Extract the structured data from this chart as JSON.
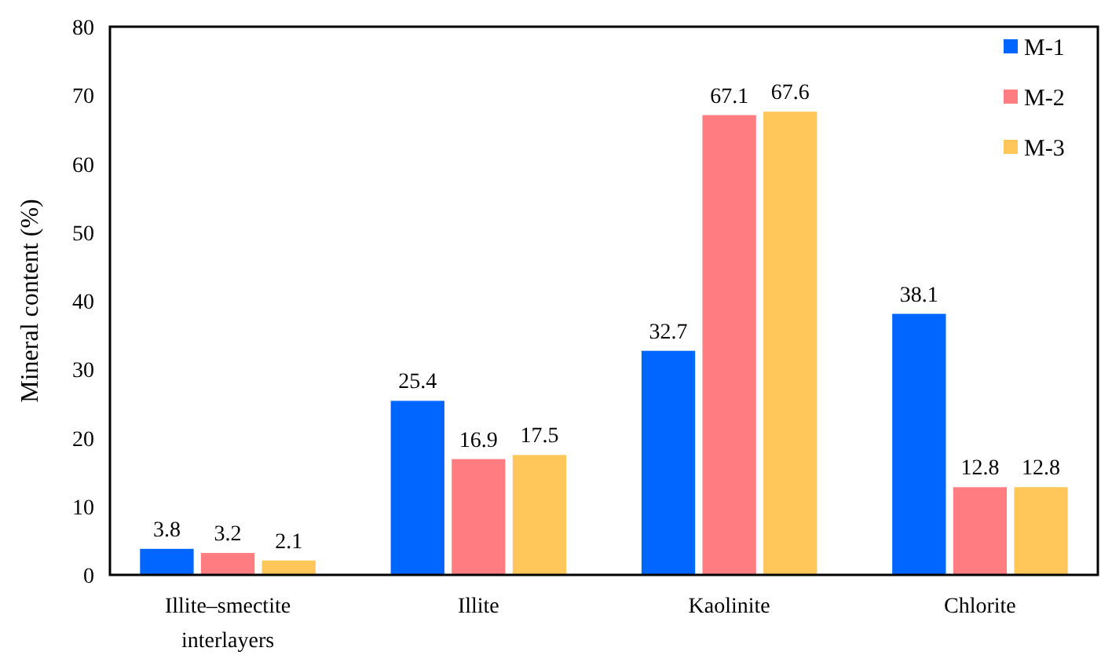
{
  "chart_data": {
    "type": "bar",
    "ylabel": "Mineral content (%)",
    "categories": [
      "Illite–smectite interlayers",
      "Illite",
      "Kaolinite",
      "Chlorite"
    ],
    "series": [
      {
        "name": "M-1",
        "color": "#0066ff",
        "values": [
          3.8,
          25.4,
          32.7,
          38.1
        ]
      },
      {
        "name": "M-2",
        "color": "#ff7c80",
        "values": [
          3.2,
          16.9,
          67.1,
          12.8
        ]
      },
      {
        "name": "M-3",
        "color": "#ffc65a",
        "values": [
          2.1,
          17.5,
          67.6,
          12.8
        ]
      }
    ],
    "ylim": [
      0,
      80
    ],
    "yticks": [
      0,
      10,
      20,
      30,
      40,
      50,
      60,
      70,
      80
    ],
    "data_labels": true,
    "legend": "top right",
    "grid": false
  }
}
